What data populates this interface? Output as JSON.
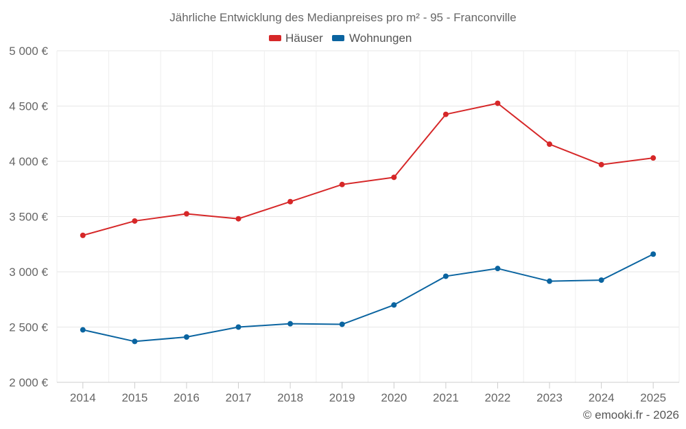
{
  "chart_data": {
    "type": "line",
    "title": "Jährliche Entwicklung des Medianpreises pro m² - 95 - Franconville",
    "categories": [
      "2014",
      "2015",
      "2016",
      "2017",
      "2018",
      "2019",
      "2020",
      "2021",
      "2022",
      "2023",
      "2024",
      "2025"
    ],
    "series": [
      {
        "name": "Häuser",
        "color": "#d62728",
        "values": [
          3330,
          3460,
          3525,
          3480,
          3635,
          3790,
          3855,
          4425,
          4525,
          4155,
          3970,
          4030
        ]
      },
      {
        "name": "Wohnungen",
        "color": "#0a64a0",
        "values": [
          2475,
          2370,
          2410,
          2500,
          2530,
          2525,
          2700,
          2960,
          3030,
          2915,
          2925,
          3160
        ]
      }
    ],
    "ylim": [
      2000,
      5000
    ],
    "yticks": [
      2000,
      2500,
      3000,
      3500,
      4000,
      4500,
      5000
    ],
    "ytick_labels": [
      "2 000 €",
      "2 500 €",
      "3 000 €",
      "3 500 €",
      "4 000 €",
      "4 500 €",
      "5 000 €"
    ],
    "xlabel": "",
    "ylabel": "",
    "grid": true,
    "legend_position": "top-center"
  },
  "credit": "© emooki.fr - 2026"
}
